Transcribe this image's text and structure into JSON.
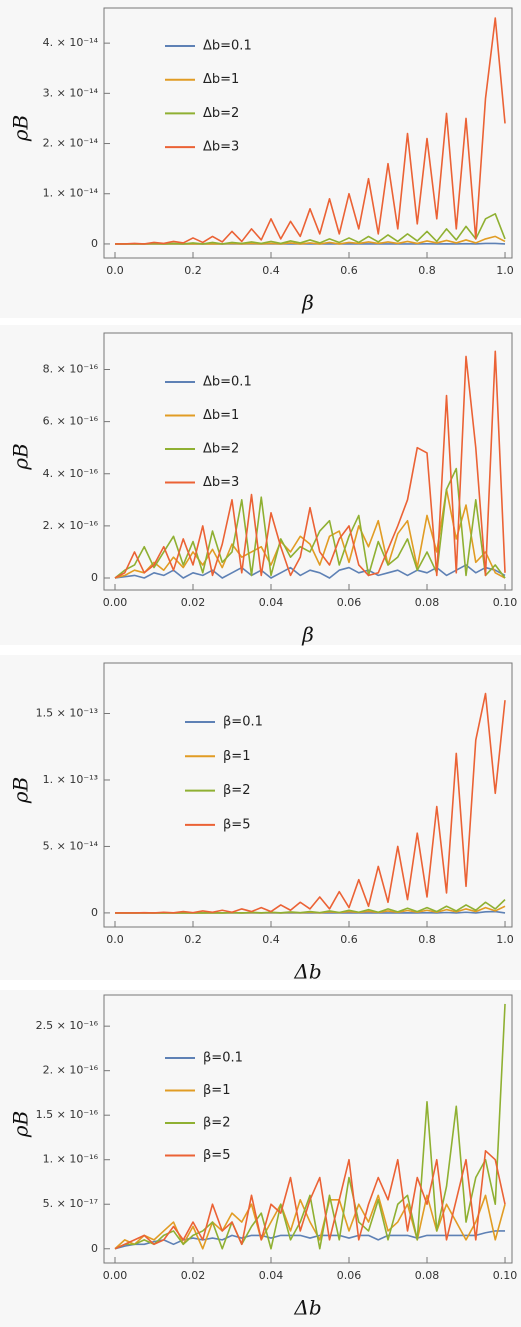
{
  "chart_data": [
    {
      "type": "line",
      "xlabel": "β",
      "ylabel": "ρB",
      "x": [
        0,
        0.025,
        0.05,
        0.075,
        0.1,
        0.125,
        0.15,
        0.175,
        0.2,
        0.225,
        0.25,
        0.275,
        0.3,
        0.325,
        0.35,
        0.375,
        0.4,
        0.425,
        0.45,
        0.475,
        0.5,
        0.525,
        0.55,
        0.575,
        0.6,
        0.625,
        0.65,
        0.675,
        0.7,
        0.725,
        0.75,
        0.775,
        0.8,
        0.825,
        0.85,
        0.875,
        0.9,
        0.925,
        0.95,
        0.975,
        1
      ],
      "series": [
        {
          "name": "Δb=0.1",
          "color": "#5e81b5",
          "values": [
            0,
            0,
            0,
            0,
            0,
            0,
            0,
            0,
            0,
            0,
            0,
            0,
            0,
            0,
            0,
            0,
            0,
            0,
            0,
            0,
            0,
            0,
            0,
            0,
            0,
            0,
            0,
            0,
            0,
            0,
            1e-17,
            0,
            2e-17,
            0,
            3e-17,
            0,
            5e-17,
            0,
            1e-16,
            1e-16,
            0
          ]
        },
        {
          "name": "Δb=1",
          "color": "#e19c24",
          "values": [
            0,
            0,
            0,
            0,
            0,
            0,
            0,
            0,
            0,
            0,
            0,
            0,
            1e-16,
            0,
            1e-16,
            0,
            1e-16,
            0,
            2e-16,
            0,
            2e-16,
            0,
            3e-16,
            0,
            3e-16,
            1e-16,
            4e-16,
            1e-16,
            4e-16,
            1e-16,
            5e-16,
            1e-16,
            6e-16,
            2e-16,
            7e-16,
            2e-16,
            8e-16,
            2e-16,
            1e-15,
            1.5e-15,
            5e-16
          ]
        },
        {
          "name": "Δb=2",
          "color": "#8fb032",
          "values": [
            0,
            0,
            0,
            0,
            1e-16,
            0,
            1e-16,
            0,
            2e-16,
            0,
            3e-16,
            0,
            3e-16,
            1e-16,
            4e-16,
            1e-16,
            5e-16,
            1e-16,
            6e-16,
            2e-16,
            8e-16,
            2e-16,
            1e-15,
            3e-16,
            1.2e-15,
            3e-16,
            1.5e-15,
            4e-16,
            1.8e-15,
            5e-16,
            2e-15,
            6e-16,
            2.5e-15,
            5e-16,
            3e-15,
            8e-16,
            3.5e-15,
            1e-15,
            5e-15,
            6e-15,
            1e-15
          ]
        },
        {
          "name": "Δb=3",
          "color": "#eb6235",
          "values": [
            0,
            0,
            1e-16,
            0,
            3e-16,
            1e-16,
            5e-16,
            2e-16,
            1.2e-15,
            3e-16,
            1.5e-15,
            4e-16,
            2.5e-15,
            5e-16,
            3e-15,
            8e-16,
            5e-15,
            1e-15,
            4.5e-15,
            1.5e-15,
            7e-15,
            2e-15,
            9e-15,
            2e-15,
            1e-14,
            3e-15,
            1.3e-14,
            2e-15,
            1.6e-14,
            3e-15,
            2.2e-14,
            4e-15,
            2.1e-14,
            5e-15,
            2.6e-14,
            3e-15,
            2.5e-14,
            1e-15,
            2.9e-14,
            4.5e-14,
            2.4e-14
          ]
        }
      ],
      "xlim": [
        -0.0282,
        1.0179
      ],
      "ylim": [
        -2.8e-15,
        4.7e-14
      ],
      "xticks": [
        {
          "value": 0,
          "label": "0.0"
        },
        0.2,
        0.4,
        0.6,
        0.8,
        {
          "value": 1,
          "label": "1.0"
        }
      ],
      "yticks": [
        0,
        {
          "value": 1e-14,
          "label": "1. × 10⁻¹⁴"
        },
        {
          "value": 2e-14,
          "label": "2. × 10⁻¹⁴"
        },
        {
          "value": 3e-14,
          "label": "3. × 10⁻¹⁴"
        },
        {
          "value": 4e-14,
          "label": "4. × 10⁻¹⁴"
        }
      ]
    },
    {
      "type": "line",
      "xlabel": "β",
      "ylabel": "ρB",
      "x": [
        0,
        0.0025,
        0.005,
        0.0075,
        0.01,
        0.0125,
        0.015,
        0.0175,
        0.02,
        0.0225,
        0.025,
        0.0275,
        0.03,
        0.0325,
        0.035,
        0.0375,
        0.04,
        0.0425,
        0.045,
        0.0475,
        0.05,
        0.0525,
        0.055,
        0.0575,
        0.06,
        0.0625,
        0.065,
        0.0675,
        0.07,
        0.0725,
        0.075,
        0.0775,
        0.08,
        0.0825,
        0.085,
        0.0875,
        0.09,
        0.0925,
        0.095,
        0.0975,
        0.1
      ],
      "series": [
        {
          "name": "Δb=0.1",
          "color": "#5e81b5",
          "values": [
            0,
            5e-18,
            1e-17,
            0,
            2e-17,
            1e-17,
            3e-17,
            0,
            2e-17,
            1e-17,
            3e-17,
            0,
            2e-17,
            4e-17,
            1e-17,
            3e-17,
            0,
            2e-17,
            4e-17,
            1e-17,
            3e-17,
            2e-17,
            0,
            3e-17,
            4e-17,
            2e-17,
            3e-17,
            1e-17,
            2e-17,
            3e-17,
            1e-17,
            3e-17,
            2e-17,
            4e-17,
            1e-17,
            3e-17,
            5e-17,
            2e-17,
            4e-17,
            3e-17,
            1e-17
          ]
        },
        {
          "name": "Δb=1",
          "color": "#e19c24",
          "values": [
            0,
            1e-17,
            3e-17,
            2e-17,
            6e-17,
            3e-17,
            8e-17,
            4e-17,
            1e-16,
            5e-17,
            1.1e-16,
            4e-17,
            1.3e-16,
            8e-17,
            1e-16,
            1.2e-16,
            5e-17,
            1.4e-16,
            1e-16,
            1.6e-16,
            1.3e-16,
            5e-17,
            1.6e-16,
            1.8e-16,
            6e-17,
            2e-16,
            1.2e-16,
            2.2e-16,
            5e-17,
            1.7e-16,
            2.2e-16,
            4e-17,
            2.4e-16,
            1e-16,
            3.4e-16,
            1.5e-16,
            2.8e-16,
            6e-17,
            1e-16,
            2e-17,
            0
          ]
        },
        {
          "name": "Δb=2",
          "color": "#8fb032",
          "values": [
            0,
            3e-17,
            5e-17,
            1.2e-16,
            4e-17,
            1e-16,
            1.6e-16,
            5e-17,
            1.4e-16,
            2e-17,
            1.8e-16,
            6e-17,
            1e-16,
            3e-16,
            1e-17,
            3.1e-16,
            1e-17,
            1.5e-16,
            8e-17,
            1.2e-16,
            1e-16,
            1.8e-16,
            2.2e-16,
            5e-17,
            1.6e-16,
            2.4e-16,
            1e-17,
            1.4e-16,
            5e-17,
            8e-17,
            1.5e-16,
            3e-17,
            1e-16,
            2e-17,
            3.4e-16,
            4.2e-16,
            1e-17,
            3e-16,
            1e-17,
            5e-17,
            0
          ]
        },
        {
          "name": "Δb=3",
          "color": "#eb6235",
          "values": [
            0,
            2e-17,
            1e-16,
            2e-17,
            5e-17,
            1.2e-16,
            3e-17,
            1.5e-16,
            5e-17,
            2e-16,
            1e-17,
            1.3e-16,
            3e-16,
            2e-17,
            3.2e-16,
            1e-17,
            2.5e-16,
            1.2e-16,
            1e-17,
            8e-17,
            2.7e-16,
            1e-16,
            5e-17,
            1.5e-16,
            2e-16,
            5e-17,
            1e-17,
            2e-17,
            1.1e-16,
            2e-16,
            3e-16,
            5e-16,
            4.8e-16,
            1e-17,
            7e-16,
            2e-17,
            8.5e-16,
            5e-16,
            1e-17,
            8.7e-16,
            2e-17
          ]
        }
      ],
      "xlim": [
        -0.00282,
        0.10179
      ],
      "ylim": [
        -4.6e-17,
        9.4e-16
      ],
      "xticks": [
        {
          "value": 0,
          "label": "0.00"
        },
        0.02,
        0.04,
        0.06,
        0.08,
        {
          "value": 0.1,
          "label": "0.10"
        }
      ],
      "yticks": [
        0,
        {
          "value": 2e-16,
          "label": "2. × 10⁻¹⁶"
        },
        {
          "value": 4e-16,
          "label": "4. × 10⁻¹⁶"
        },
        {
          "value": 6e-16,
          "label": "6. × 10⁻¹⁶"
        },
        {
          "value": 8e-16,
          "label": "8. × 10⁻¹⁶"
        }
      ]
    },
    {
      "type": "line",
      "xlabel": "Δb",
      "ylabel": "ρB",
      "x": [
        0,
        0.025,
        0.05,
        0.075,
        0.1,
        0.125,
        0.15,
        0.175,
        0.2,
        0.225,
        0.25,
        0.275,
        0.3,
        0.325,
        0.35,
        0.375,
        0.4,
        0.425,
        0.45,
        0.475,
        0.5,
        0.525,
        0.55,
        0.575,
        0.6,
        0.625,
        0.65,
        0.675,
        0.7,
        0.725,
        0.75,
        0.775,
        0.8,
        0.825,
        0.85,
        0.875,
        0.9,
        0.925,
        0.95,
        0.975,
        1
      ],
      "series": [
        {
          "name": "β=0.1",
          "color": "#5e81b5",
          "values": [
            0,
            0,
            0,
            0,
            0,
            0,
            0,
            0,
            0,
            0,
            0,
            0,
            0,
            0,
            0,
            0,
            0,
            0,
            0,
            0,
            0,
            0,
            0,
            0,
            0,
            0,
            0,
            0,
            0,
            0,
            1e-16,
            0,
            2e-16,
            0,
            3e-16,
            0,
            5e-16,
            0,
            8e-16,
            1e-15,
            0
          ]
        },
        {
          "name": "β=1",
          "color": "#e19c24",
          "values": [
            0,
            0,
            0,
            0,
            0,
            0,
            0,
            0,
            0,
            0,
            1e-16,
            0,
            2e-16,
            0,
            2e-16,
            0,
            3e-16,
            0,
            4e-16,
            1e-16,
            5e-16,
            1e-16,
            8e-16,
            2e-16,
            1e-15,
            3e-16,
            1.2e-15,
            3e-16,
            1.5e-15,
            4e-16,
            1.8e-15,
            5e-16,
            2e-15,
            5e-16,
            2.5e-15,
            8e-16,
            3e-15,
            1e-15,
            4e-15,
            1.5e-15,
            5e-15
          ]
        },
        {
          "name": "β=2",
          "color": "#8fb032",
          "values": [
            0,
            0,
            0,
            0,
            0,
            0,
            0,
            0,
            1e-16,
            0,
            2e-16,
            0,
            3e-16,
            0,
            4e-16,
            1e-16,
            5e-16,
            1e-16,
            7e-16,
            2e-16,
            1e-15,
            2e-16,
            1.5e-15,
            3e-16,
            2e-15,
            5e-16,
            2.5e-15,
            5e-16,
            3e-15,
            8e-16,
            3.5e-15,
            1e-15,
            4e-15,
            1e-15,
            5e-15,
            1.5e-15,
            6e-15,
            2e-15,
            8e-15,
            3e-15,
            1e-14
          ]
        },
        {
          "name": "β=5",
          "color": "#eb6235",
          "values": [
            0,
            0,
            0,
            2e-16,
            0,
            5e-16,
            1e-16,
            1e-15,
            2e-16,
            1.5e-15,
            5e-16,
            2e-15,
            5e-16,
            3e-15,
            1e-15,
            4e-15,
            1e-15,
            6e-15,
            2e-15,
            8e-15,
            3e-15,
            1.2e-14,
            3e-15,
            1.6e-14,
            4e-15,
            2.5e-14,
            5e-15,
            3.5e-14,
            8e-15,
            5e-14,
            1e-14,
            6e-14,
            1.2e-14,
            8e-14,
            1.5e-14,
            1.2e-13,
            2e-14,
            1.3e-13,
            1.65e-13,
            9e-14,
            1.6e-13
          ]
        }
      ],
      "xlim": [
        -0.0282,
        1.0179
      ],
      "ylim": [
        -1.06e-14,
        1.88e-13
      ],
      "xticks": [
        {
          "value": 0,
          "label": "0.0"
        },
        0.2,
        0.4,
        0.6,
        0.8,
        {
          "value": 1,
          "label": "1.0"
        }
      ],
      "yticks": [
        0,
        {
          "value": 5e-14,
          "label": "5. × 10⁻¹⁴"
        },
        {
          "value": 1e-13,
          "label": "1. × 10⁻¹³"
        },
        {
          "value": 1.5e-13,
          "label": "1.5 × 10⁻¹³"
        }
      ]
    },
    {
      "type": "line",
      "xlabel": "Δb",
      "ylabel": "ρB",
      "x": [
        0,
        0.0025,
        0.005,
        0.0075,
        0.01,
        0.0125,
        0.015,
        0.0175,
        0.02,
        0.0225,
        0.025,
        0.0275,
        0.03,
        0.0325,
        0.035,
        0.0375,
        0.04,
        0.0425,
        0.045,
        0.0475,
        0.05,
        0.0525,
        0.055,
        0.0575,
        0.06,
        0.0625,
        0.065,
        0.0675,
        0.07,
        0.0725,
        0.075,
        0.0775,
        0.08,
        0.0825,
        0.085,
        0.0875,
        0.09,
        0.0925,
        0.095,
        0.0975,
        0.1
      ],
      "series": [
        {
          "name": "β=0.1",
          "color": "#5e81b5",
          "values": [
            0,
            3e-18,
            5e-18,
            5e-18,
            8e-18,
            1e-17,
            5e-18,
            1e-17,
            1.2e-17,
            1e-17,
            1.2e-17,
            1e-17,
            1.5e-17,
            1.2e-17,
            1.5e-17,
            1.5e-17,
            1.2e-17,
            1.5e-17,
            1.5e-17,
            1.5e-17,
            1.2e-17,
            1.5e-17,
            1.5e-17,
            1.5e-17,
            1.2e-17,
            1.5e-17,
            1.5e-17,
            1e-17,
            1.5e-17,
            1.5e-17,
            1.5e-17,
            1.2e-17,
            1.5e-17,
            1.5e-17,
            1.5e-17,
            1.5e-17,
            1.5e-17,
            1.5e-17,
            1.8e-17,
            2e-17,
            2e-17
          ]
        },
        {
          "name": "β=1",
          "color": "#e19c24",
          "values": [
            0,
            1e-17,
            5e-18,
            1.5e-17,
            1e-17,
            2e-17,
            3e-17,
            5e-18,
            2.5e-17,
            0,
            3e-17,
            2e-17,
            4e-17,
            3e-17,
            5e-17,
            1e-17,
            3e-17,
            5e-17,
            2e-17,
            5.5e-17,
            3e-17,
            1e-17,
            5.5e-17,
            5.5e-17,
            2e-17,
            5e-17,
            3e-17,
            6e-17,
            2e-17,
            3e-17,
            5e-17,
            1e-17,
            6e-17,
            2e-17,
            5e-17,
            3e-17,
            1e-17,
            3e-17,
            6e-17,
            1e-17,
            5e-17
          ]
        },
        {
          "name": "β=2",
          "color": "#8fb032",
          "values": [
            0,
            5e-18,
            5e-18,
            1e-17,
            5e-18,
            1.5e-17,
            2e-17,
            5e-18,
            1.5e-17,
            2e-17,
            3e-17,
            0,
            3e-17,
            5e-18,
            2.5e-17,
            4e-17,
            0,
            5e-17,
            1e-17,
            3e-17,
            6e-17,
            0,
            6e-17,
            1e-17,
            8e-17,
            3e-17,
            2e-17,
            5.5e-17,
            1e-17,
            5e-17,
            6e-17,
            1e-17,
            1.65e-16,
            2e-17,
            7e-17,
            1.6e-16,
            3e-17,
            8e-17,
            1e-16,
            5e-17,
            2.75e-16
          ]
        },
        {
          "name": "β=5",
          "color": "#eb6235",
          "values": [
            0,
            5e-18,
            1e-17,
            1.5e-17,
            5e-18,
            1e-17,
            2.5e-17,
            1e-17,
            3e-17,
            1e-17,
            5e-17,
            2e-17,
            3e-17,
            5e-18,
            6e-17,
            1e-17,
            5e-17,
            4e-17,
            8e-17,
            2e-17,
            5.5e-17,
            8e-17,
            1e-17,
            5.5e-17,
            1e-16,
            1e-17,
            5e-17,
            8e-17,
            5.5e-17,
            1e-16,
            2e-17,
            8e-17,
            5e-17,
            1e-16,
            1e-17,
            5.5e-17,
            1e-16,
            1e-17,
            1.1e-16,
            1e-16,
            5e-17
          ]
        }
      ],
      "xlim": [
        -0.00282,
        0.10179
      ],
      "ylim": [
        -1.6e-17,
        2.85e-16
      ],
      "xticks": [
        {
          "value": 0,
          "label": "0.00"
        },
        0.02,
        0.04,
        0.06,
        0.08,
        {
          "value": 0.1,
          "label": "0.10"
        }
      ],
      "yticks": [
        0,
        {
          "value": 5e-17,
          "label": "5. × 10⁻¹⁷"
        },
        {
          "value": 1e-16,
          "label": "1. × 10⁻¹⁶"
        },
        {
          "value": 1.5e-16,
          "label": "1.5 × 10⁻¹⁶"
        },
        {
          "value": 2e-16,
          "label": "2. × 10⁻¹⁶"
        },
        {
          "value": 2.5e-16,
          "label": "2.5 × 10⁻¹⁶"
        }
      ]
    }
  ]
}
